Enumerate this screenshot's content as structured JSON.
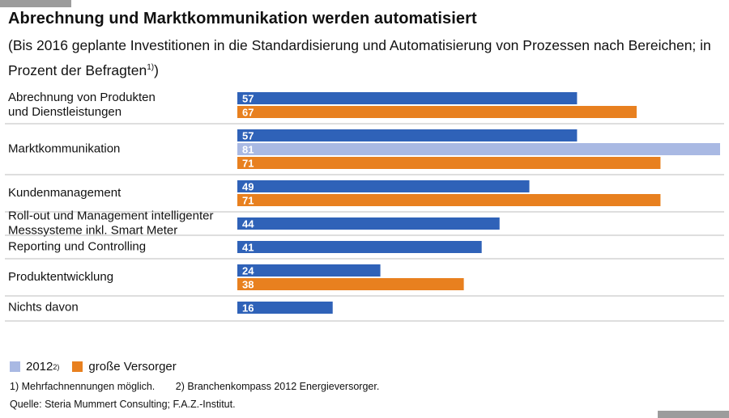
{
  "title": "Abrechnung und Marktkommunikation werden automatisiert",
  "subtitle": "(Bis 2016 geplante Investitionen in die Standardisierung und Automatisierung von Prozessen nach Bereichen; in Prozent der Befragten",
  "subtitle_footnote_ref": "1)",
  "subtitle_close": ")",
  "legend": {
    "items": [
      {
        "label": "2012",
        "sup": "2)",
        "color": "#a9b9e3"
      },
      {
        "label": "große Versorger",
        "color": "#e8801f"
      }
    ]
  },
  "footnotes": {
    "note1": "1)  Mehrfachnennungen möglich.",
    "note2": "2)  Branchenkompass 2012 Energieversorger."
  },
  "source": "Quelle: Steria Mummert Consulting; F.A.Z.-Institut.",
  "colors": {
    "main": "#2f62b8",
    "y2012": "#a9b9e3",
    "large": "#e8801f",
    "divider": "#bdbdbd"
  },
  "chart_data": {
    "type": "bar",
    "orientation": "horizontal",
    "xlim": [
      0,
      81
    ],
    "categories": [
      "Abrechnung von Produkten und Dienstleistungen",
      "Marktkommunikation",
      "Kundenmanagement",
      "Roll-out und Management intelligenter Messsysteme inkl. Smart Meter",
      "Reporting und Controlling",
      "Produktentwicklung",
      "Nichts davon"
    ],
    "category_lines": [
      [
        "Abrechnung von Produkten",
        "und Dienstleistungen"
      ],
      [
        "Marktkommunikation"
      ],
      [
        "Kundenmanagement"
      ],
      [
        "Roll-out und Management intelligenter",
        "Messsysteme inkl. Smart Meter"
      ],
      [
        "Reporting und Controlling"
      ],
      [
        "Produktentwicklung"
      ],
      [
        "Nichts davon"
      ]
    ],
    "series": [
      {
        "key": "main",
        "values": [
          57,
          57,
          49,
          44,
          41,
          24,
          16
        ]
      },
      {
        "key": "y2012",
        "name": "2012",
        "values": [
          null,
          81,
          null,
          null,
          null,
          null,
          null
        ]
      },
      {
        "key": "large",
        "name": "große Versorger",
        "values": [
          67,
          71,
          71,
          null,
          null,
          38,
          null
        ]
      }
    ]
  }
}
